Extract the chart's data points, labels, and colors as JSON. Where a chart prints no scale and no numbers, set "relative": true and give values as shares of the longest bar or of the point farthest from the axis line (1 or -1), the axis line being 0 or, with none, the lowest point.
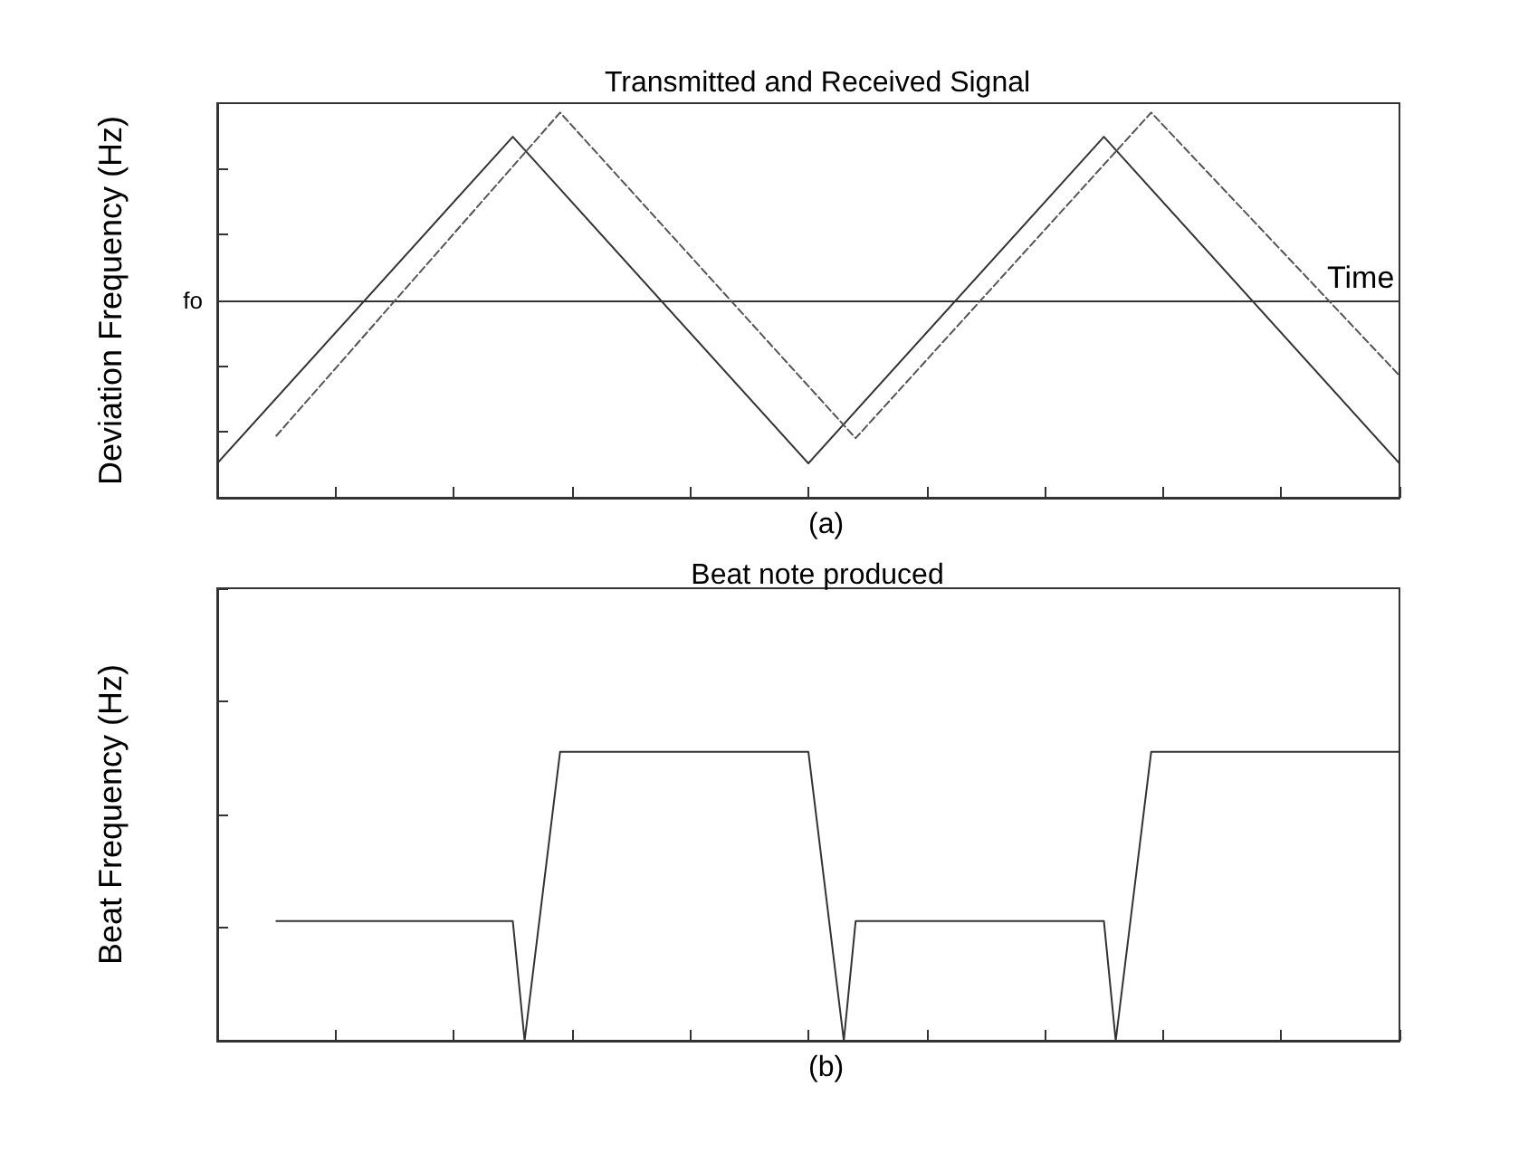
{
  "chart_data": [
    {
      "type": "line",
      "title": "Transmitted and Received Signal",
      "xlabel": "Time",
      "ylabel": "Deviation Frequency (Hz)",
      "relative": true,
      "categories": [
        null,
        null,
        null,
        null,
        null,
        null,
        null,
        null,
        null,
        null,
        null,
        null,
        null,
        null,
        null,
        null,
        null,
        null,
        null,
        null,
        null,
        null,
        null,
        null,
        null,
        null,
        null,
        null,
        null,
        null,
        null,
        null,
        null,
        null,
        null,
        null,
        null,
        null,
        null,
        null,
        null,
        null,
        null,
        null,
        null,
        null,
        null,
        null,
        null,
        null,
        null,
        null,
        null,
        null,
        null,
        null,
        null,
        null,
        null,
        null,
        null,
        null,
        null,
        null,
        null,
        null,
        null,
        null,
        null,
        null,
        null,
        null,
        null,
        null,
        null,
        null,
        null,
        null,
        null,
        null,
        null,
        null,
        null,
        null,
        null,
        null,
        null,
        null,
        null,
        null,
        null,
        null,
        null,
        null,
        null,
        null,
        null,
        null,
        null,
        null,
        null
      ],
      "series": [
        {
          "color": "#333333",
          "line_style": "solid",
          "values": [
            -0.867,
            null,
            null,
            null,
            null,
            null,
            null,
            null,
            null,
            null,
            null,
            null,
            null,
            null,
            null,
            null,
            null,
            null,
            null,
            null,
            null,
            null,
            null,
            null,
            null,
            0.871,
            null,
            null,
            null,
            null,
            null,
            null,
            null,
            null,
            null,
            null,
            null,
            null,
            null,
            null,
            null,
            null,
            null,
            null,
            null,
            null,
            null,
            null,
            null,
            null,
            -0.867,
            null,
            null,
            null,
            null,
            null,
            null,
            null,
            null,
            null,
            null,
            null,
            null,
            null,
            null,
            null,
            null,
            null,
            null,
            null,
            null,
            null,
            null,
            null,
            null,
            0.871,
            null,
            null,
            null,
            null,
            null,
            null,
            null,
            null,
            null,
            null,
            null,
            null,
            null,
            null,
            null,
            null,
            null,
            null,
            null,
            null,
            null,
            null,
            null,
            null,
            -0.867
          ]
        },
        {
          "color": "#555555",
          "line_style": "dashed",
          "values": [
            null,
            null,
            null,
            null,
            null,
            -0.72,
            null,
            null,
            null,
            null,
            null,
            null,
            null,
            null,
            null,
            null,
            null,
            null,
            null,
            null,
            null,
            null,
            null,
            null,
            null,
            null,
            null,
            null,
            null,
            1,
            null,
            null,
            null,
            null,
            null,
            null,
            null,
            null,
            null,
            null,
            null,
            null,
            null,
            null,
            null,
            null,
            null,
            null,
            null,
            null,
            null,
            null,
            null,
            null,
            -0.733,
            null,
            null,
            null,
            null,
            null,
            null,
            null,
            null,
            null,
            null,
            null,
            null,
            null,
            null,
            null,
            null,
            null,
            null,
            null,
            null,
            null,
            null,
            null,
            null,
            1,
            null,
            null,
            null,
            null,
            null,
            null,
            null,
            null,
            null,
            null,
            null,
            null,
            null,
            null,
            null,
            null,
            null,
            null,
            null,
            null,
            -0.4
          ]
        }
      ],
      "annotations": [
        "fo",
        "(a)"
      ],
      "grid": false
    },
    {
      "type": "line",
      "title": "Beat note produced",
      "ylabel": "Beat Frequency (Hz)",
      "relative": true,
      "categories": [
        null,
        null,
        null,
        null,
        null,
        null,
        null,
        null,
        null,
        null,
        null,
        null,
        null,
        null,
        null,
        null,
        null,
        null,
        null,
        null,
        null,
        null,
        null,
        null,
        null,
        null,
        null,
        null,
        null,
        null,
        null,
        null,
        null,
        null,
        null,
        null,
        null,
        null,
        null,
        null,
        null,
        null,
        null,
        null,
        null,
        null,
        null,
        null,
        null,
        null,
        null,
        null,
        null,
        null,
        null,
        null,
        null,
        null,
        null,
        null,
        null,
        null,
        null,
        null,
        null,
        null,
        null,
        null,
        null,
        null,
        null,
        null,
        null,
        null,
        null,
        null,
        null,
        null,
        null,
        null,
        null,
        null,
        null,
        null,
        null,
        null,
        null,
        null,
        null,
        null,
        null,
        null,
        null,
        null,
        null,
        null,
        null,
        null,
        null,
        null,
        null
      ],
      "series": [
        {
          "color": "#333333",
          "line_style": "solid",
          "values": [
            null,
            null,
            null,
            null,
            null,
            0.414,
            null,
            null,
            null,
            null,
            null,
            null,
            null,
            null,
            null,
            null,
            null,
            null,
            null,
            null,
            null,
            null,
            null,
            null,
            null,
            0.414,
            0,
            null,
            null,
            1,
            null,
            null,
            null,
            null,
            null,
            null,
            null,
            null,
            null,
            null,
            null,
            null,
            null,
            null,
            null,
            null,
            null,
            null,
            null,
            null,
            1,
            null,
            null,
            0,
            0.414,
            null,
            null,
            null,
            null,
            null,
            null,
            null,
            null,
            null,
            null,
            null,
            null,
            null,
            null,
            null,
            null,
            null,
            null,
            null,
            null,
            0.414,
            0,
            null,
            null,
            1,
            null,
            null,
            null,
            null,
            null,
            null,
            null,
            null,
            null,
            null,
            null,
            null,
            null,
            null,
            null,
            null,
            null,
            null,
            null,
            null,
            1
          ]
        }
      ],
      "annotations": [
        "(b)"
      ],
      "grid": false
    }
  ]
}
